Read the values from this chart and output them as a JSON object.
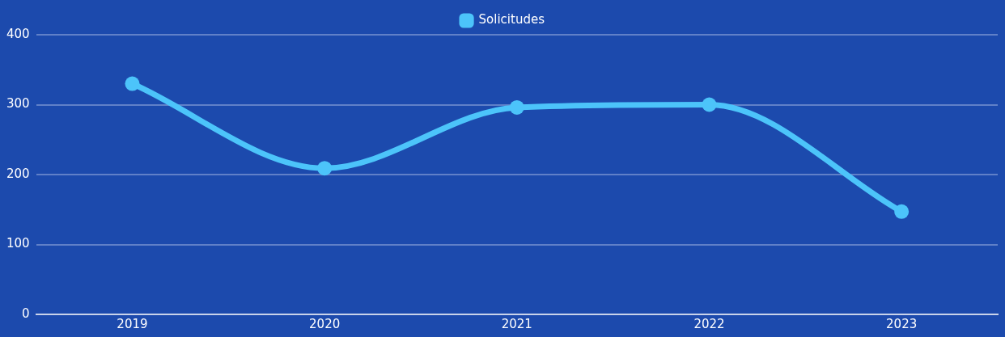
{
  "chart_data": {
    "type": "line",
    "categories": [
      "2019",
      "2020",
      "2021",
      "2022",
      "2023"
    ],
    "series": [
      {
        "name": "Solicitudes",
        "color": "#4cc4fa",
        "values": [
          330,
          209,
          296,
          300,
          147
        ]
      }
    ],
    "ylim": [
      0,
      400
    ],
    "yticks": [
      0,
      100,
      200,
      300,
      400
    ],
    "grid": "y",
    "legend": "top",
    "marker": "circle",
    "line_style": "solid"
  }
}
